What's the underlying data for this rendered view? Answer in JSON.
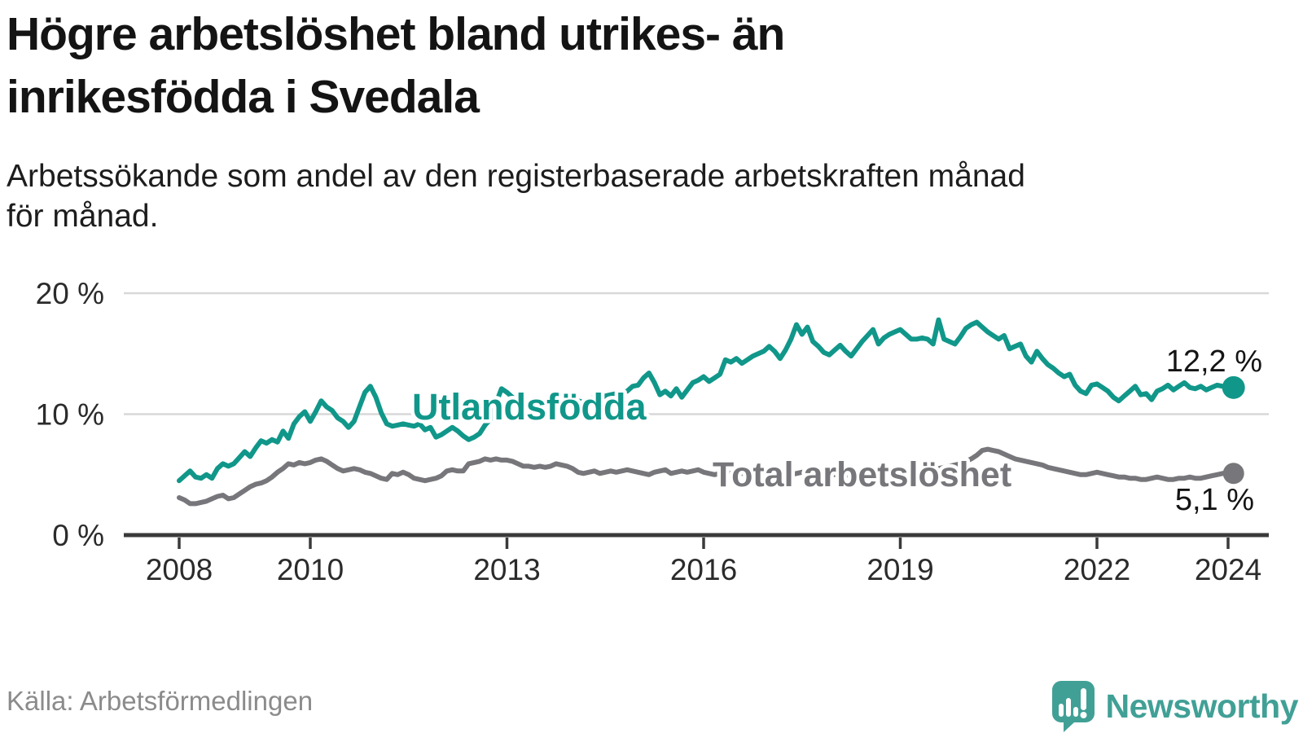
{
  "header": {
    "title_lines": [
      "Högre arbetslöshet bland utrikes- än",
      "inrikesfödda i Svedala"
    ],
    "subtitle_lines": [
      "Arbetssökande som andel av den registerbaserade arbetskraften månad",
      "för månad."
    ]
  },
  "footer": {
    "source": "Källa: Arbetsförmedlingen",
    "brand": "Newsworthy"
  },
  "colors": {
    "teal_line": "#10978A",
    "gray_line": "#77777B",
    "text_dark": "#141414",
    "grid": "#d8d8d8",
    "axis": "#3a3a3a",
    "logo_teal": "#41A096",
    "source_gray": "#8b8b8b"
  },
  "chart_data": {
    "type": "line",
    "title": "Högre arbetslöshet bland utrikes- än inrikesfödda i Svedala",
    "subtitle": "Arbetssökande som andel av den registerbaserade arbetskraften månad för månad.",
    "frequency": "monthly",
    "x_start": "2008-01",
    "x_end": "2024-02",
    "ylim": [
      0,
      20
    ],
    "grid": true,
    "y_ticks": [
      {
        "label": "20 %",
        "value": 20
      },
      {
        "label": "10 %",
        "value": 10
      },
      {
        "label": "0 %",
        "value": 0
      }
    ],
    "x_ticks": [
      {
        "label": "2008",
        "year": 2008
      },
      {
        "label": "2010",
        "year": 2010
      },
      {
        "label": "2013",
        "year": 2013
      },
      {
        "label": "2016",
        "year": 2016
      },
      {
        "label": "2019",
        "year": 2019
      },
      {
        "label": "2022",
        "year": 2022
      },
      {
        "label": "2024",
        "year": 2024
      }
    ],
    "series": [
      {
        "name": "Utlandsfödda",
        "color": "#10978A",
        "end_label": "12,2 %",
        "end_value": 12.2,
        "values": [
          4.5,
          4.9,
          5.3,
          4.8,
          4.7,
          5.0,
          4.7,
          5.5,
          5.9,
          5.7,
          5.9,
          6.4,
          6.9,
          6.5,
          7.2,
          7.8,
          7.6,
          7.9,
          7.7,
          8.6,
          8.0,
          9.2,
          9.8,
          10.2,
          9.4,
          10.2,
          11.1,
          10.6,
          10.3,
          9.7,
          9.4,
          8.9,
          9.4,
          10.6,
          11.8,
          12.3,
          11.4,
          10.1,
          9.2,
          9.0,
          9.1,
          9.2,
          9.1,
          9.0,
          9.2,
          8.7,
          8.9,
          8.1,
          8.3,
          8.6,
          8.9,
          8.6,
          8.2,
          7.9,
          8.1,
          8.4,
          9.1,
          9.6,
          10.9,
          12.1,
          11.8,
          11.4,
          11.0,
          10.8,
          11.0,
          11.2,
          11.0,
          10.9,
          11.1,
          11.3,
          11.4,
          11.5,
          11.3,
          11.1,
          11.0,
          11.2,
          11.4,
          11.3,
          11.5,
          11.6,
          11.7,
          11.8,
          11.9,
          12.3,
          12.4,
          13.0,
          13.4,
          12.6,
          11.6,
          11.9,
          11.5,
          12.1,
          11.4,
          12.0,
          12.6,
          12.8,
          13.1,
          12.7,
          13.0,
          13.3,
          14.5,
          14.3,
          14.6,
          14.2,
          14.5,
          14.8,
          15.0,
          15.2,
          15.6,
          15.2,
          14.6,
          15.3,
          16.2,
          17.4,
          16.6,
          17.2,
          16.0,
          15.6,
          15.1,
          14.9,
          15.3,
          15.7,
          15.2,
          14.8,
          15.4,
          16.0,
          16.5,
          17.0,
          15.8,
          16.3,
          16.6,
          16.8,
          17.0,
          16.6,
          16.2,
          16.2,
          16.3,
          16.2,
          15.8,
          17.8,
          16.2,
          16.0,
          15.8,
          16.4,
          17.1,
          17.4,
          17.6,
          17.2,
          16.8,
          16.5,
          16.2,
          16.5,
          15.4,
          15.6,
          15.8,
          14.8,
          14.3,
          15.2,
          14.6,
          14.1,
          13.8,
          13.4,
          13.1,
          13.3,
          12.4,
          11.9,
          11.7,
          12.4,
          12.5,
          12.2,
          11.9,
          11.4,
          11.1,
          11.5,
          11.9,
          12.3,
          11.6,
          11.7,
          11.2,
          11.9,
          12.1,
          12.4,
          12.0,
          12.3,
          12.6,
          12.2,
          12.1,
          12.3,
          12.0,
          12.2,
          12.4,
          12.3,
          12.1,
          12.2
        ]
      },
      {
        "name": "Total arbetslöshet",
        "color": "#77777B",
        "end_label": "5,1 %",
        "end_value": 5.1,
        "values": [
          3.1,
          2.9,
          2.6,
          2.6,
          2.7,
          2.8,
          3.0,
          3.2,
          3.3,
          3.0,
          3.1,
          3.4,
          3.7,
          4.0,
          4.2,
          4.3,
          4.5,
          4.8,
          5.2,
          5.5,
          5.9,
          5.8,
          6.0,
          5.9,
          6.0,
          6.2,
          6.3,
          6.1,
          5.8,
          5.5,
          5.3,
          5.4,
          5.5,
          5.4,
          5.2,
          5.1,
          4.9,
          4.7,
          4.6,
          5.1,
          5.0,
          5.2,
          5.0,
          4.7,
          4.6,
          4.5,
          4.6,
          4.7,
          4.9,
          5.3,
          5.4,
          5.3,
          5.3,
          5.9,
          6.0,
          6.1,
          6.3,
          6.2,
          6.3,
          6.2,
          6.2,
          6.1,
          5.9,
          5.7,
          5.7,
          5.6,
          5.7,
          5.6,
          5.7,
          5.9,
          5.8,
          5.7,
          5.5,
          5.2,
          5.1,
          5.2,
          5.3,
          5.1,
          5.2,
          5.3,
          5.2,
          5.3,
          5.4,
          5.3,
          5.2,
          5.1,
          5.0,
          5.2,
          5.3,
          5.4,
          5.1,
          5.2,
          5.3,
          5.2,
          5.3,
          5.4,
          5.2,
          5.1,
          5.0,
          5.1,
          5.2,
          5.1,
          5.0,
          5.1,
          5.2,
          5.1,
          5.0,
          5.1,
          5.0,
          4.9,
          5.0,
          5.1,
          5.0,
          5.1,
          5.2,
          5.1,
          5.0,
          5.1,
          5.0,
          5.1,
          5.0,
          5.1,
          5.0,
          4.9,
          5.0,
          5.1,
          5.0,
          5.1,
          5.2,
          5.1,
          5.2,
          5.3,
          5.2,
          5.3,
          5.4,
          5.3,
          5.4,
          5.5,
          5.4,
          5.5,
          5.6,
          5.7,
          5.8,
          5.9,
          6.1,
          6.3,
          6.6,
          7.0,
          7.1,
          7.0,
          6.9,
          6.7,
          6.5,
          6.3,
          6.2,
          6.1,
          6.0,
          5.9,
          5.8,
          5.6,
          5.5,
          5.4,
          5.3,
          5.2,
          5.1,
          5.0,
          5.0,
          5.1,
          5.2,
          5.1,
          5.0,
          4.9,
          4.8,
          4.8,
          4.7,
          4.7,
          4.6,
          4.6,
          4.7,
          4.8,
          4.7,
          4.6,
          4.6,
          4.7,
          4.7,
          4.8,
          4.7,
          4.7,
          4.8,
          4.9,
          5.0,
          5.1,
          5.2,
          5.1
        ]
      }
    ]
  }
}
